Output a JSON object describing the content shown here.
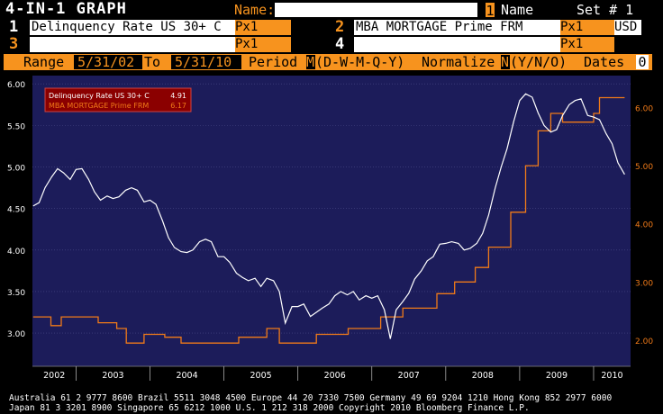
{
  "header": {
    "title": "4-IN-1 GRAPH",
    "name_label": "Name:",
    "name_value": "",
    "set_num": "1",
    "set_name_label": "Name",
    "set_label": "Set # 1"
  },
  "securities": [
    {
      "num": "1",
      "ticker": "Delinquency Rate US 30+ C",
      "field": "Px1",
      "currency": ""
    },
    {
      "num": "2",
      "ticker": "MBA MORTGAGE  Prime FRM",
      "field": "Px1",
      "currency": "USD"
    },
    {
      "num": "3",
      "ticker": "",
      "field": "Px1",
      "currency": ""
    },
    {
      "num": "4",
      "ticker": "",
      "field": "Px1",
      "currency": ""
    }
  ],
  "range_bar": {
    "range_label": "Range",
    "start": "5/31/02",
    "to_label": "To",
    "end": "5/31/10",
    "period_label": "Period",
    "period_value": "M",
    "period_options": "(D-W-M-Q-Y)",
    "normalize_label": "Normalize",
    "normalize_value": "N",
    "normalize_options": "(Y/N/O)",
    "dates_label": "Dates",
    "dates_value": "0"
  },
  "colors": {
    "plot_bg": "#1c1c5a",
    "series1": "#ffffff",
    "series2": "#f07a18",
    "accent": "#f7931e",
    "legend_bg": "#8b0000"
  },
  "legend": [
    {
      "name": "Delinquency Rate US 30+ C",
      "value": "4.91"
    },
    {
      "name": "MBA MORTGAGE  Prime FRM",
      "value": "6.17"
    }
  ],
  "chart_data": {
    "type": "line",
    "left_axis": {
      "ticks": [
        "3.00",
        "3.50",
        "4.00",
        "4.50",
        "5.00",
        "5.50",
        "6.00"
      ],
      "ylim": [
        2.6,
        6.1
      ]
    },
    "right_axis": {
      "ticks": [
        "2.00",
        "3.00",
        "4.00",
        "5.00",
        "6.00"
      ],
      "ylim": [
        1.55,
        6.55
      ]
    },
    "x_ticks": [
      "2002",
      "2003",
      "2004",
      "2005",
      "2006",
      "2007",
      "2008",
      "2009",
      "2010"
    ],
    "xlim": [
      2002.41,
      2010.5
    ],
    "series": [
      {
        "name": "Delinquency Rate US 30+ C",
        "axis": "left",
        "x": [
          2002.42,
          2002.5,
          2002.58,
          2002.67,
          2002.75,
          2002.83,
          2002.92,
          2003.0,
          2003.08,
          2003.17,
          2003.25,
          2003.33,
          2003.42,
          2003.5,
          2003.58,
          2003.67,
          2003.75,
          2003.83,
          2003.92,
          2004.0,
          2004.08,
          2004.17,
          2004.25,
          2004.33,
          2004.42,
          2004.5,
          2004.58,
          2004.67,
          2004.75,
          2004.83,
          2004.92,
          2005.0,
          2005.08,
          2005.17,
          2005.25,
          2005.33,
          2005.42,
          2005.5,
          2005.58,
          2005.67,
          2005.75,
          2005.83,
          2005.92,
          2006.0,
          2006.08,
          2006.17,
          2006.25,
          2006.33,
          2006.42,
          2006.5,
          2006.58,
          2006.67,
          2006.75,
          2006.83,
          2006.92,
          2007.0,
          2007.08,
          2007.17,
          2007.25,
          2007.33,
          2007.42,
          2007.5,
          2007.58,
          2007.67,
          2007.75,
          2007.83,
          2007.92,
          2008.0,
          2008.08,
          2008.17,
          2008.25,
          2008.33,
          2008.42,
          2008.5,
          2008.58,
          2008.67,
          2008.75,
          2008.83,
          2008.92,
          2009.0,
          2009.08,
          2009.17,
          2009.25,
          2009.33,
          2009.42,
          2009.5,
          2009.58,
          2009.67,
          2009.75,
          2009.83,
          2009.92,
          2010.0,
          2010.08,
          2010.17,
          2010.25,
          2010.33,
          2010.42
        ],
        "y": [
          4.53,
          4.57,
          4.75,
          4.88,
          4.98,
          4.93,
          4.85,
          4.97,
          4.98,
          4.85,
          4.7,
          4.6,
          4.65,
          4.62,
          4.64,
          4.72,
          4.75,
          4.72,
          4.58,
          4.6,
          4.55,
          4.35,
          4.15,
          4.03,
          3.98,
          3.97,
          4.0,
          4.1,
          4.13,
          4.1,
          3.92,
          3.92,
          3.85,
          3.72,
          3.67,
          3.63,
          3.66,
          3.56,
          3.66,
          3.63,
          3.5,
          3.12,
          3.32,
          3.32,
          3.35,
          3.2,
          3.25,
          3.3,
          3.35,
          3.45,
          3.5,
          3.46,
          3.5,
          3.4,
          3.45,
          3.42,
          3.45,
          3.28,
          2.93,
          3.28,
          3.38,
          3.48,
          3.65,
          3.75,
          3.87,
          3.92,
          4.07,
          4.08,
          4.1,
          4.08,
          4.0,
          4.02,
          4.08,
          4.2,
          4.42,
          4.75,
          5.0,
          5.22,
          5.55,
          5.8,
          5.88,
          5.84,
          5.65,
          5.5,
          5.42,
          5.45,
          5.62,
          5.75,
          5.8,
          5.82,
          5.62,
          5.6,
          5.57,
          5.4,
          5.28,
          5.05,
          4.91
        ]
      },
      {
        "name": "MBA MORTGAGE  Prime FRM",
        "axis": "right",
        "steps": [
          [
            2002.42,
            2.4
          ],
          [
            2002.66,
            2.25
          ],
          [
            2002.8,
            2.4
          ],
          [
            2003.3,
            2.3
          ],
          [
            2003.55,
            2.2
          ],
          [
            2003.68,
            1.95
          ],
          [
            2003.92,
            2.1
          ],
          [
            2004.2,
            2.05
          ],
          [
            2004.42,
            1.95
          ],
          [
            2005.2,
            2.05
          ],
          [
            2005.58,
            2.2
          ],
          [
            2005.75,
            1.95
          ],
          [
            2006.25,
            2.1
          ],
          [
            2006.68,
            2.2
          ],
          [
            2007.12,
            2.4
          ],
          [
            2007.42,
            2.55
          ],
          [
            2007.88,
            2.8
          ],
          [
            2008.12,
            3.0
          ],
          [
            2008.4,
            3.25
          ],
          [
            2008.58,
            3.6
          ],
          [
            2008.88,
            4.2
          ],
          [
            2009.08,
            5.0
          ],
          [
            2009.25,
            5.6
          ],
          [
            2009.42,
            5.9
          ],
          [
            2009.58,
            5.75
          ],
          [
            2010.0,
            5.9
          ],
          [
            2010.08,
            6.17
          ],
          [
            2010.42,
            6.17
          ]
        ]
      }
    ]
  },
  "footer": {
    "line1": "Australia 61 2 9777 8600 Brazil 5511 3048 4500 Europe 44 20 7330 7500 Germany 49 69 9204 1210 Hong Kong 852 2977 6000",
    "line2": "Japan 81 3 3201 8900       Singapore 65 6212 1000       U.S. 1 212 318 2000       Copyright 2010 Bloomberg Finance L.P."
  }
}
